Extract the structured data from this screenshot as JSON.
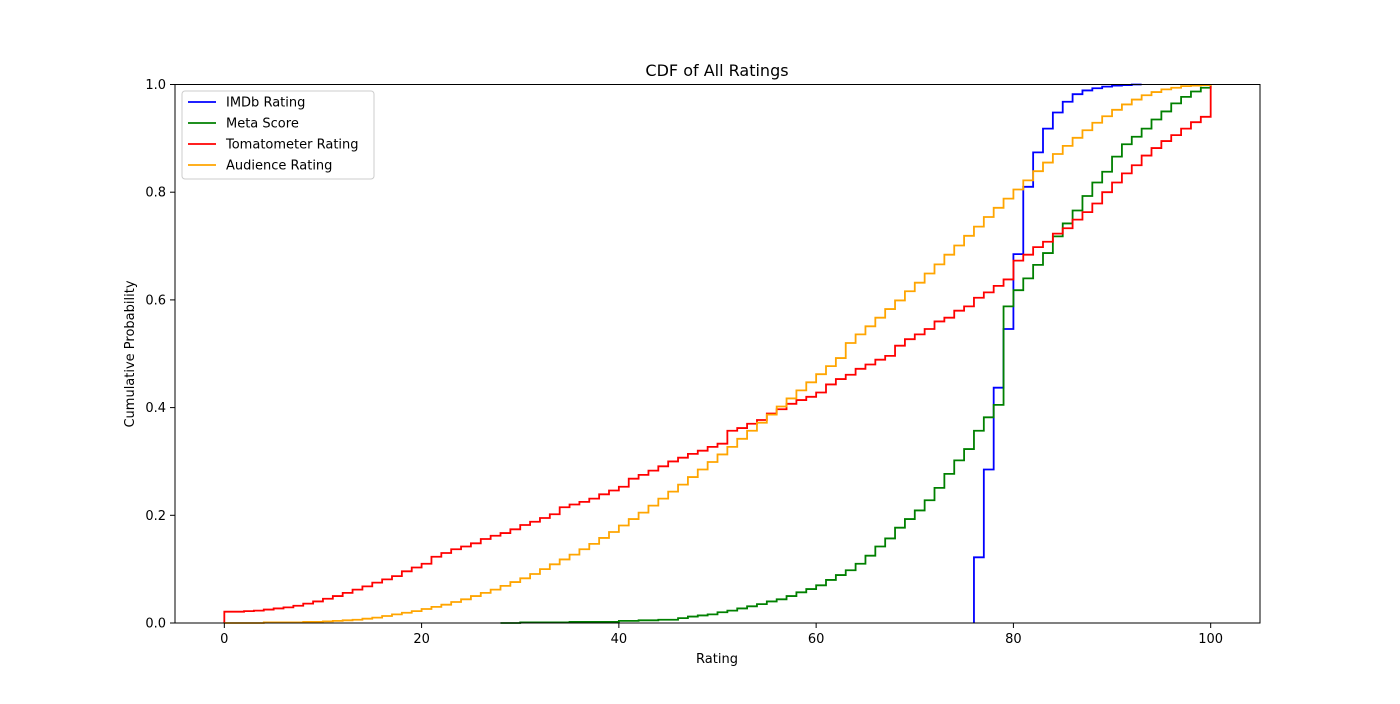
{
  "chart_data": {
    "type": "line",
    "step": true,
    "title": "CDF of All Ratings",
    "xlabel": "Rating",
    "ylabel": "Cumulative Probability",
    "xlim": [
      -5,
      105
    ],
    "ylim": [
      0,
      1
    ],
    "x_ticks": [
      0,
      20,
      40,
      60,
      80,
      100
    ],
    "x_tick_labels": [
      "0",
      "20",
      "40",
      "60",
      "80",
      "100"
    ],
    "y_ticks": [
      0,
      0.2,
      0.4,
      0.6,
      0.8,
      1.0
    ],
    "y_tick_labels": [
      "0.0",
      "0.2",
      "0.4",
      "0.6",
      "0.8",
      "1.0"
    ],
    "grid": false,
    "legend_position": "top-left",
    "series": [
      {
        "name": "IMDb Rating",
        "color": "#0000ff",
        "points": [
          [
            76,
            0
          ],
          [
            76,
            0.122
          ],
          [
            77,
            0.285
          ],
          [
            78,
            0.437
          ],
          [
            79,
            0.546
          ],
          [
            80,
            0.685
          ],
          [
            81,
            0.81
          ],
          [
            82,
            0.874
          ],
          [
            83,
            0.918
          ],
          [
            84,
            0.948
          ],
          [
            85,
            0.968
          ],
          [
            86,
            0.982
          ],
          [
            87,
            0.989
          ],
          [
            88,
            0.993
          ],
          [
            89,
            0.996
          ],
          [
            90,
            0.998
          ],
          [
            91,
            0.999
          ],
          [
            92,
            1.0
          ],
          [
            93,
            1.0
          ]
        ]
      },
      {
        "name": "Meta Score",
        "color": "#008000",
        "points": [
          [
            28,
            0
          ],
          [
            30,
            0.001
          ],
          [
            35,
            0.002
          ],
          [
            40,
            0.004
          ],
          [
            42,
            0.005
          ],
          [
            44,
            0.006
          ],
          [
            46,
            0.009
          ],
          [
            47,
            0.012
          ],
          [
            48,
            0.014
          ],
          [
            49,
            0.016
          ],
          [
            50,
            0.02
          ],
          [
            51,
            0.023
          ],
          [
            52,
            0.027
          ],
          [
            53,
            0.031
          ],
          [
            54,
            0.035
          ],
          [
            55,
            0.04
          ],
          [
            56,
            0.044
          ],
          [
            57,
            0.05
          ],
          [
            58,
            0.057
          ],
          [
            59,
            0.063
          ],
          [
            60,
            0.07
          ],
          [
            61,
            0.08
          ],
          [
            62,
            0.089
          ],
          [
            63,
            0.098
          ],
          [
            64,
            0.11
          ],
          [
            65,
            0.125
          ],
          [
            66,
            0.142
          ],
          [
            67,
            0.157
          ],
          [
            68,
            0.177
          ],
          [
            69,
            0.193
          ],
          [
            70,
            0.209
          ],
          [
            71,
            0.228
          ],
          [
            72,
            0.251
          ],
          [
            73,
            0.277
          ],
          [
            74,
            0.302
          ],
          [
            75,
            0.323
          ],
          [
            76,
            0.357
          ],
          [
            77,
            0.382
          ],
          [
            78,
            0.405
          ],
          [
            79,
            0.588
          ],
          [
            80,
            0.618
          ],
          [
            81,
            0.64
          ],
          [
            82,
            0.665
          ],
          [
            83,
            0.687
          ],
          [
            84,
            0.718
          ],
          [
            85,
            0.742
          ],
          [
            86,
            0.766
          ],
          [
            87,
            0.793
          ],
          [
            88,
            0.818
          ],
          [
            89,
            0.838
          ],
          [
            90,
            0.866
          ],
          [
            91,
            0.889
          ],
          [
            92,
            0.903
          ],
          [
            93,
            0.918
          ],
          [
            94,
            0.935
          ],
          [
            95,
            0.95
          ],
          [
            96,
            0.965
          ],
          [
            97,
            0.977
          ],
          [
            98,
            0.987
          ],
          [
            99,
            0.994
          ],
          [
            100,
            1.0
          ]
        ]
      },
      {
        "name": "Tomatometer Rating",
        "color": "#ff0000",
        "points": [
          [
            0,
            0
          ],
          [
            0,
            0.021
          ],
          [
            2,
            0.022
          ],
          [
            3,
            0.023
          ],
          [
            4,
            0.025
          ],
          [
            5,
            0.027
          ],
          [
            6,
            0.029
          ],
          [
            7,
            0.032
          ],
          [
            8,
            0.036
          ],
          [
            9,
            0.04
          ],
          [
            10,
            0.045
          ],
          [
            11,
            0.05
          ],
          [
            12,
            0.056
          ],
          [
            13,
            0.062
          ],
          [
            14,
            0.068
          ],
          [
            15,
            0.075
          ],
          [
            16,
            0.081
          ],
          [
            17,
            0.087
          ],
          [
            18,
            0.096
          ],
          [
            19,
            0.103
          ],
          [
            20,
            0.11
          ],
          [
            21,
            0.123
          ],
          [
            22,
            0.13
          ],
          [
            23,
            0.137
          ],
          [
            24,
            0.142
          ],
          [
            25,
            0.148
          ],
          [
            26,
            0.156
          ],
          [
            27,
            0.162
          ],
          [
            28,
            0.167
          ],
          [
            29,
            0.174
          ],
          [
            30,
            0.182
          ],
          [
            31,
            0.188
          ],
          [
            32,
            0.195
          ],
          [
            33,
            0.202
          ],
          [
            34,
            0.215
          ],
          [
            35,
            0.22
          ],
          [
            36,
            0.225
          ],
          [
            37,
            0.231
          ],
          [
            38,
            0.239
          ],
          [
            39,
            0.246
          ],
          [
            40,
            0.253
          ],
          [
            41,
            0.268
          ],
          [
            42,
            0.275
          ],
          [
            43,
            0.283
          ],
          [
            44,
            0.291
          ],
          [
            45,
            0.3
          ],
          [
            46,
            0.307
          ],
          [
            47,
            0.314
          ],
          [
            48,
            0.32
          ],
          [
            49,
            0.327
          ],
          [
            50,
            0.333
          ],
          [
            51,
            0.357
          ],
          [
            52,
            0.362
          ],
          [
            53,
            0.37
          ],
          [
            54,
            0.377
          ],
          [
            55,
            0.389
          ],
          [
            56,
            0.397
          ],
          [
            57,
            0.407
          ],
          [
            58,
            0.414
          ],
          [
            59,
            0.42
          ],
          [
            60,
            0.428
          ],
          [
            61,
            0.443
          ],
          [
            62,
            0.453
          ],
          [
            63,
            0.461
          ],
          [
            64,
            0.472
          ],
          [
            65,
            0.48
          ],
          [
            66,
            0.489
          ],
          [
            67,
            0.496
          ],
          [
            68,
            0.515
          ],
          [
            69,
            0.527
          ],
          [
            70,
            0.536
          ],
          [
            71,
            0.546
          ],
          [
            72,
            0.56
          ],
          [
            73,
            0.567
          ],
          [
            74,
            0.58
          ],
          [
            75,
            0.588
          ],
          [
            76,
            0.604
          ],
          [
            77,
            0.614
          ],
          [
            78,
            0.626
          ],
          [
            79,
            0.638
          ],
          [
            80,
            0.673
          ],
          [
            81,
            0.684
          ],
          [
            82,
            0.698
          ],
          [
            83,
            0.708
          ],
          [
            84,
            0.723
          ],
          [
            85,
            0.733
          ],
          [
            86,
            0.749
          ],
          [
            87,
            0.763
          ],
          [
            88,
            0.779
          ],
          [
            89,
            0.8
          ],
          [
            90,
            0.818
          ],
          [
            91,
            0.835
          ],
          [
            92,
            0.85
          ],
          [
            93,
            0.868
          ],
          [
            94,
            0.882
          ],
          [
            95,
            0.895
          ],
          [
            96,
            0.906
          ],
          [
            97,
            0.918
          ],
          [
            98,
            0.93
          ],
          [
            99,
            0.94
          ],
          [
            100,
            0.946
          ],
          [
            100,
            1.0
          ]
        ]
      },
      {
        "name": "Audience Rating",
        "color": "#ffa500",
        "points": [
          [
            0,
            0
          ],
          [
            4,
            0.001
          ],
          [
            8,
            0.002
          ],
          [
            10,
            0.003
          ],
          [
            11,
            0.004
          ],
          [
            12,
            0.005
          ],
          [
            13,
            0.006
          ],
          [
            14,
            0.008
          ],
          [
            15,
            0.01
          ],
          [
            16,
            0.013
          ],
          [
            17,
            0.016
          ],
          [
            18,
            0.019
          ],
          [
            19,
            0.022
          ],
          [
            20,
            0.026
          ],
          [
            21,
            0.03
          ],
          [
            22,
            0.034
          ],
          [
            23,
            0.039
          ],
          [
            24,
            0.044
          ],
          [
            25,
            0.05
          ],
          [
            26,
            0.056
          ],
          [
            27,
            0.062
          ],
          [
            28,
            0.069
          ],
          [
            29,
            0.076
          ],
          [
            30,
            0.083
          ],
          [
            31,
            0.091
          ],
          [
            32,
            0.1
          ],
          [
            33,
            0.109
          ],
          [
            34,
            0.118
          ],
          [
            35,
            0.127
          ],
          [
            36,
            0.137
          ],
          [
            37,
            0.147
          ],
          [
            38,
            0.158
          ],
          [
            39,
            0.169
          ],
          [
            40,
            0.181
          ],
          [
            41,
            0.193
          ],
          [
            42,
            0.205
          ],
          [
            43,
            0.218
          ],
          [
            44,
            0.231
          ],
          [
            45,
            0.244
          ],
          [
            46,
            0.257
          ],
          [
            47,
            0.271
          ],
          [
            48,
            0.285
          ],
          [
            49,
            0.299
          ],
          [
            50,
            0.313
          ],
          [
            51,
            0.327
          ],
          [
            52,
            0.342
          ],
          [
            53,
            0.357
          ],
          [
            54,
            0.372
          ],
          [
            55,
            0.387
          ],
          [
            56,
            0.402
          ],
          [
            57,
            0.417
          ],
          [
            58,
            0.432
          ],
          [
            59,
            0.447
          ],
          [
            60,
            0.462
          ],
          [
            61,
            0.477
          ],
          [
            62,
            0.492
          ],
          [
            63,
            0.52
          ],
          [
            64,
            0.536
          ],
          [
            65,
            0.551
          ],
          [
            66,
            0.567
          ],
          [
            67,
            0.583
          ],
          [
            68,
            0.599
          ],
          [
            69,
            0.616
          ],
          [
            70,
            0.632
          ],
          [
            71,
            0.649
          ],
          [
            72,
            0.666
          ],
          [
            73,
            0.684
          ],
          [
            74,
            0.701
          ],
          [
            75,
            0.719
          ],
          [
            76,
            0.736
          ],
          [
            77,
            0.754
          ],
          [
            78,
            0.771
          ],
          [
            79,
            0.788
          ],
          [
            80,
            0.805
          ],
          [
            81,
            0.822
          ],
          [
            82,
            0.839
          ],
          [
            83,
            0.855
          ],
          [
            84,
            0.871
          ],
          [
            85,
            0.886
          ],
          [
            86,
            0.901
          ],
          [
            87,
            0.915
          ],
          [
            88,
            0.929
          ],
          [
            89,
            0.941
          ],
          [
            90,
            0.953
          ],
          [
            91,
            0.963
          ],
          [
            92,
            0.972
          ],
          [
            93,
            0.98
          ],
          [
            94,
            0.986
          ],
          [
            95,
            0.991
          ],
          [
            96,
            0.994
          ],
          [
            97,
            0.997
          ],
          [
            98,
            0.998
          ],
          [
            99,
            0.999
          ],
          [
            100,
            1.0
          ]
        ]
      }
    ]
  }
}
